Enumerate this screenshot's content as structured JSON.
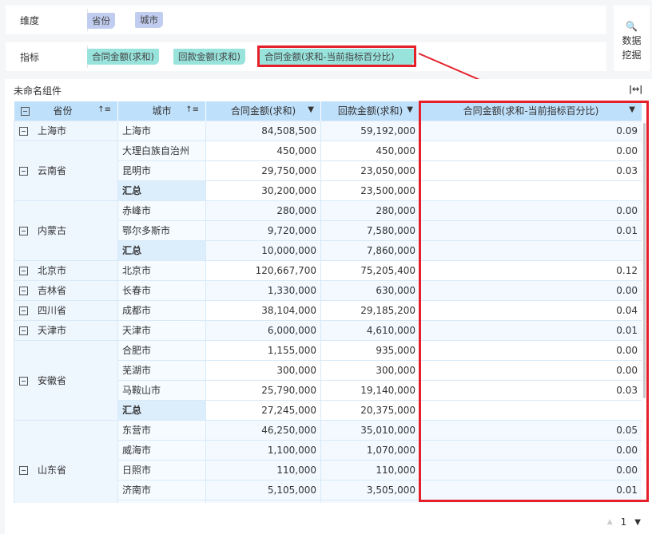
{
  "dimension": {
    "label": "维度",
    "chips": [
      "省份",
      "城市"
    ]
  },
  "measure": {
    "label": "指标",
    "chips": [
      "合同金额(求和)",
      "回款金额(求和)",
      "合同金额(求和-当前指标百分比)"
    ]
  },
  "mining": {
    "label1": "数据",
    "label2": "挖掘",
    "icon": "search-chart-icon"
  },
  "widget": {
    "title": "未命名组件",
    "fit_icon": "|↔|"
  },
  "table": {
    "headers": [
      "省份",
      "城市",
      "合同金额(求和)",
      "回款金额(求和)",
      "合同金额(求和-当前指标百分比)"
    ],
    "groups": [
      {
        "province": "上海市",
        "rows": [
          [
            "上海市",
            "84,508,500",
            "59,192,000",
            "0.09"
          ]
        ]
      },
      {
        "province": "云南省",
        "rows": [
          [
            "大理白族自治州",
            "450,000",
            "450,000",
            "0.00"
          ],
          [
            "昆明市",
            "29,750,000",
            "23,050,000",
            "0.03"
          ]
        ],
        "subtotal": [
          "汇总",
          "30,200,000",
          "23,500,000",
          ""
        ]
      },
      {
        "province": "内蒙古",
        "rows": [
          [
            "赤峰市",
            "280,000",
            "280,000",
            "0.00"
          ],
          [
            "鄂尔多斯市",
            "9,720,000",
            "7,580,000",
            "0.01"
          ]
        ],
        "subtotal": [
          "汇总",
          "10,000,000",
          "7,860,000",
          ""
        ]
      },
      {
        "province": "北京市",
        "rows": [
          [
            "北京市",
            "120,667,700",
            "75,205,400",
            "0.12"
          ]
        ]
      },
      {
        "province": "吉林省",
        "rows": [
          [
            "长春市",
            "1,330,000",
            "630,000",
            "0.00"
          ]
        ]
      },
      {
        "province": "四川省",
        "rows": [
          [
            "成都市",
            "38,104,000",
            "29,185,200",
            "0.04"
          ]
        ]
      },
      {
        "province": "天津市",
        "rows": [
          [
            "天津市",
            "6,000,000",
            "4,610,000",
            "0.01"
          ]
        ]
      },
      {
        "province": "安徽省",
        "rows": [
          [
            "合肥市",
            "1,155,000",
            "935,000",
            "0.00"
          ],
          [
            "芜湖市",
            "300,000",
            "300,000",
            "0.00"
          ],
          [
            "马鞍山市",
            "25,790,000",
            "19,140,000",
            "0.03"
          ]
        ],
        "subtotal": [
          "汇总",
          "27,245,000",
          "20,375,000",
          ""
        ]
      },
      {
        "province": "山东省",
        "rows": [
          [
            "东营市",
            "46,250,000",
            "35,010,000",
            "0.05"
          ],
          [
            "威海市",
            "1,100,000",
            "1,070,000",
            "0.00"
          ],
          [
            "日照市",
            "110,000",
            "110,000",
            "0.00"
          ],
          [
            "济南市",
            "5,105,000",
            "3,505,000",
            "0.01"
          ],
          [
            "",
            "",
            "",
            ""
          ]
        ]
      }
    ]
  },
  "pager": {
    "page": "1"
  },
  "colors": {
    "highlight": "#e5202a",
    "header": "#bfe0fb",
    "dimension_chip": "#c1cdf0",
    "measure_chip": "#98e3dc"
  }
}
